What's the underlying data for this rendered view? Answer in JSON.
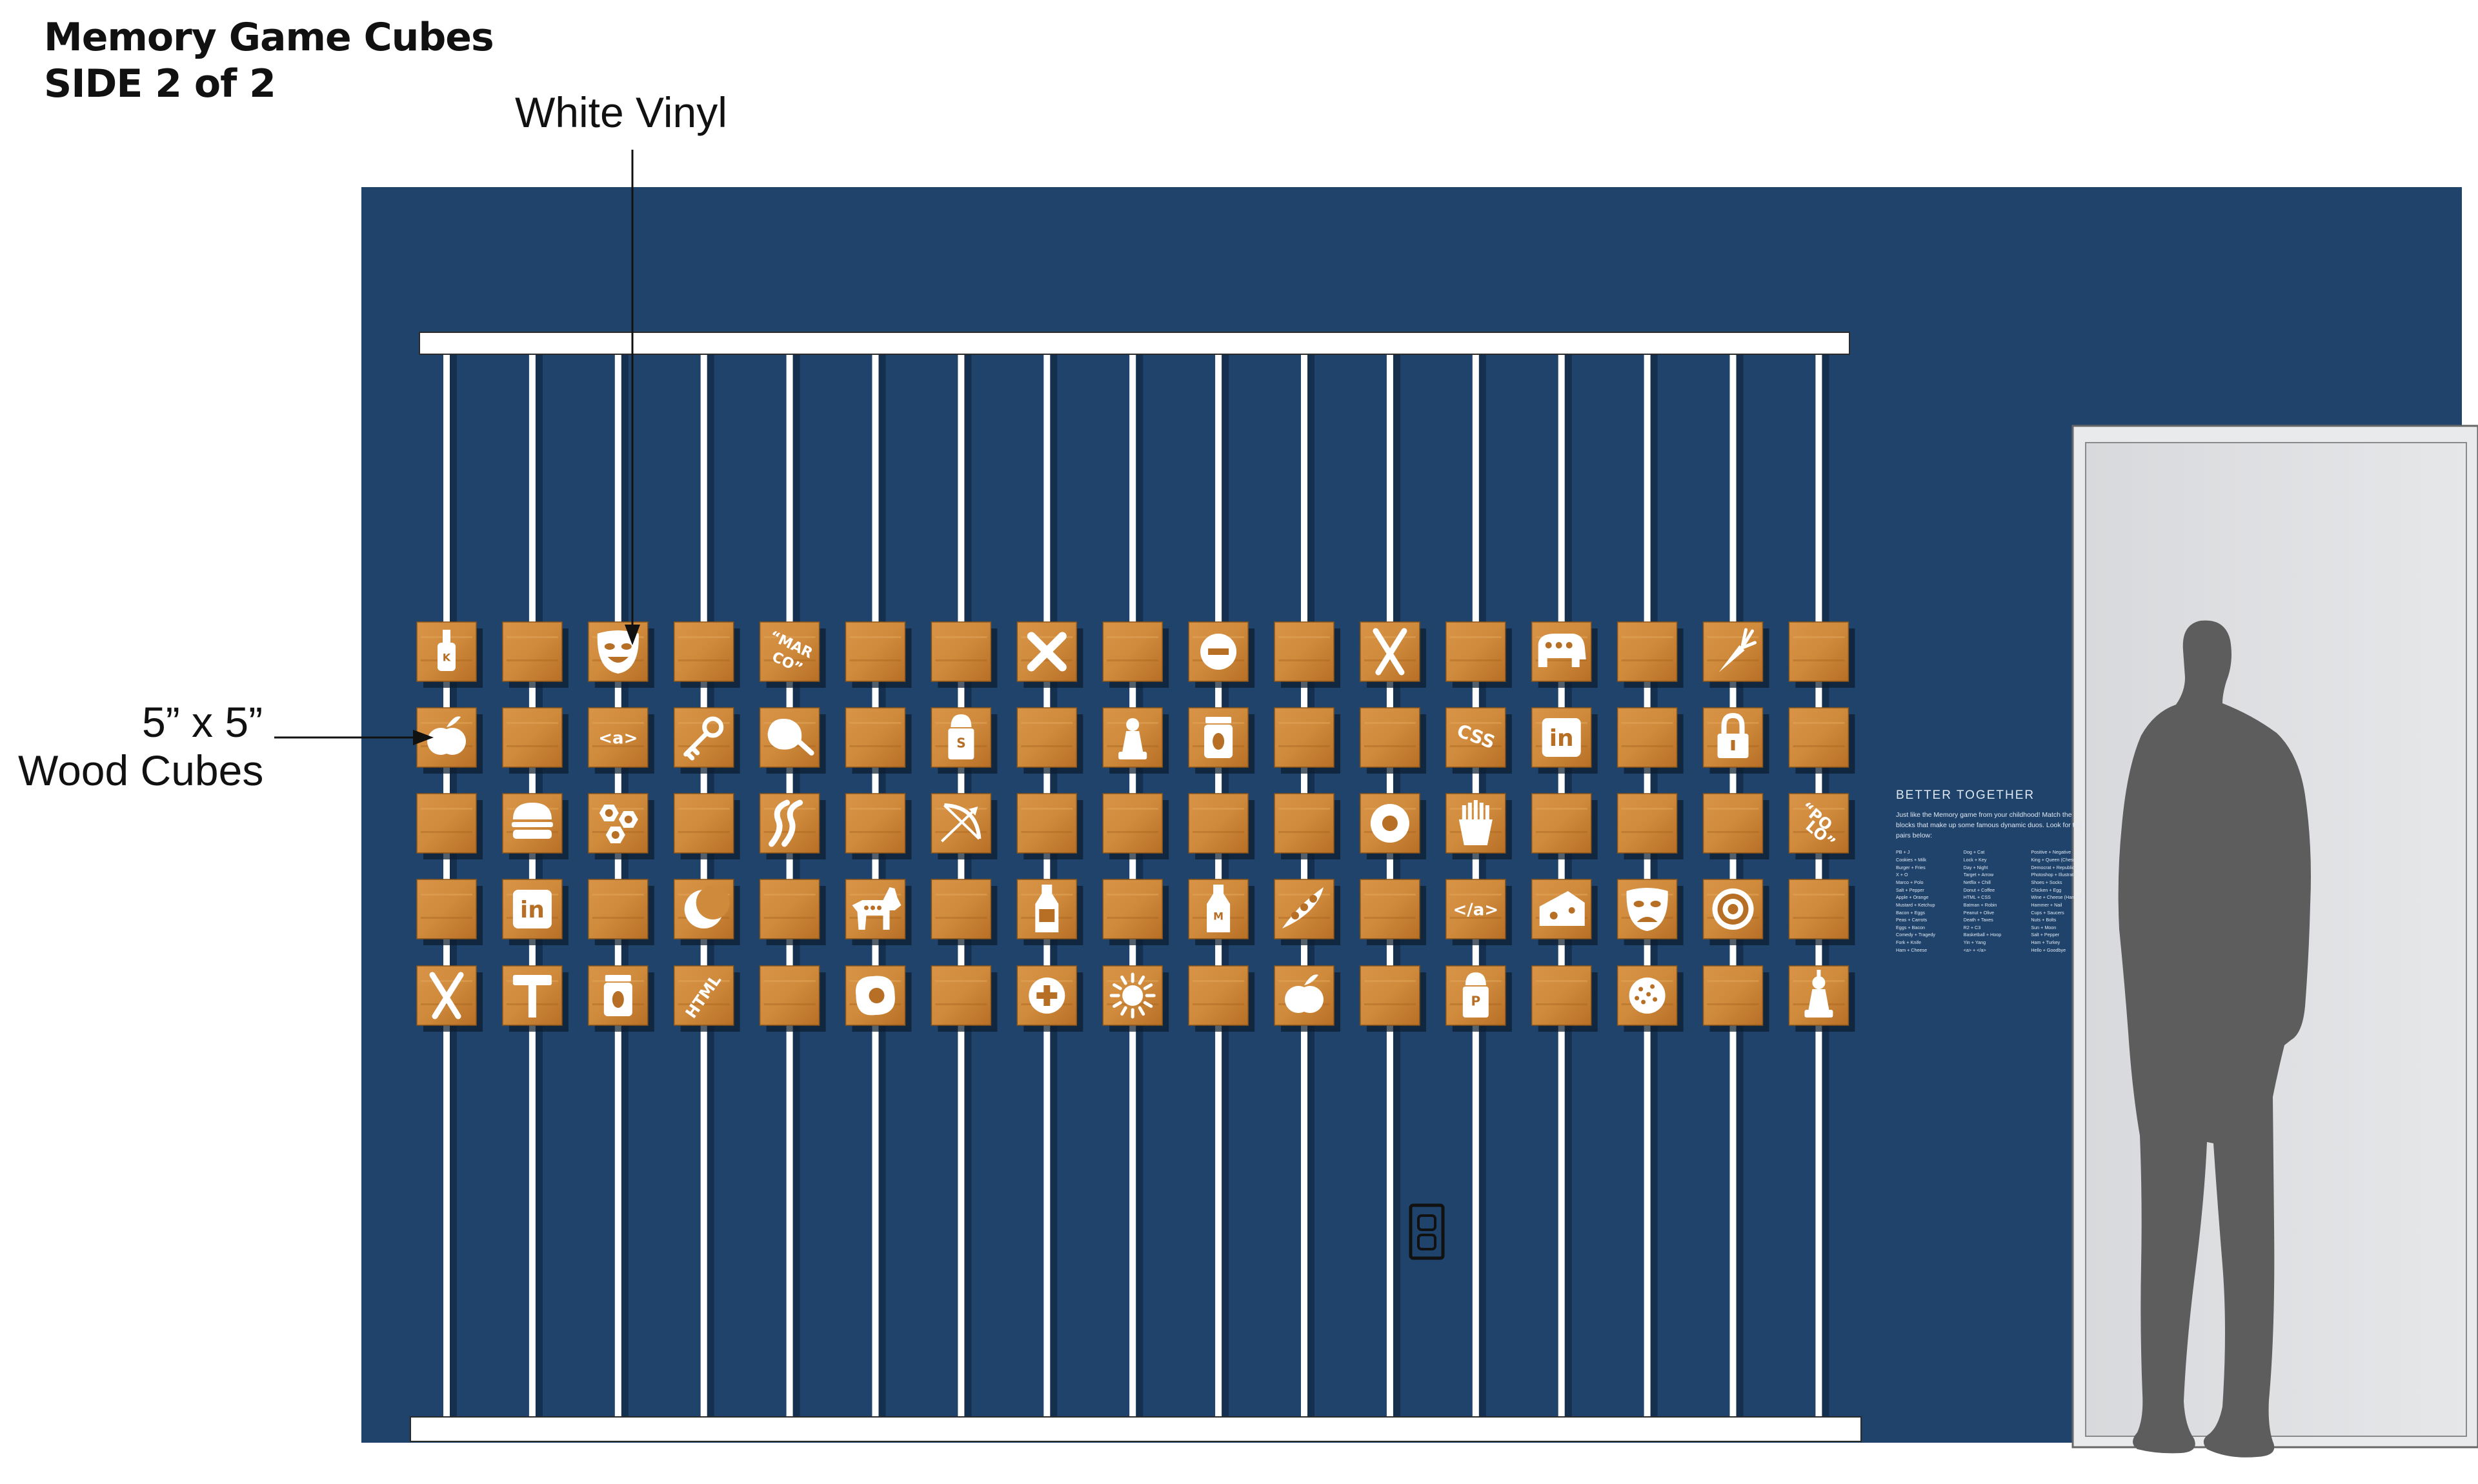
{
  "title": {
    "line1": "Memory Game Cubes",
    "line2": "SIDE 2 of 2"
  },
  "callouts": {
    "vinyl": "White Vinyl",
    "cube_line1": "5” x 5”",
    "cube_line2": "Wood Cubes"
  },
  "info_panel": {
    "heading": "BETTER TOGETHER",
    "intro": "Just like the Memory game from your childhood! Match the blocks that make up some famous dynamic duos. Look for the pairs below:",
    "pairs_col1": [
      "PB + J",
      "Cookies + Milk",
      "Burger + Fries",
      "X + O",
      "Marco + Polo",
      "Salt + Pepper",
      "Apple + Orange",
      "Mustard + Ketchup",
      "Bacon + Eggs",
      "Peas + Carrots",
      "Eggs + Bacon",
      "Comedy + Tragedy",
      "Fork + Knife",
      "Ham + Cheese"
    ],
    "pairs_col2": [
      "Dog + Cat",
      "Lock + Key",
      "Day + Night",
      "Target + Arrow",
      "Netflix + Chill",
      "Donut + Coffee",
      "HTML + CSS",
      "Batman + Robin",
      "Peanut + Olive",
      "Death + Taxes",
      "R2 + C3",
      "Basketball + Hoop",
      "Yin + Yang",
      "<a> + </a>"
    ],
    "pairs_col3": [
      "Positive + Negative",
      "King + Queen (Chess)",
      "Democrat + Republican",
      "Photoshop + Illustrator",
      "Shoes + Socks",
      "Chicken + Egg",
      "Wine + Cheese (Harry P)",
      "Hammer + Nail",
      "Cups + Saucers",
      "Nuts + Bolts",
      "Sun + Moon",
      "Salt + Pepper",
      "Ham + Turkey",
      "Hello + Goodbye"
    ]
  },
  "cube_icons": [
    [
      "ketchup-bottle-icon",
      "",
      "comedy-mask-icon",
      "",
      "marco-text-icon",
      "",
      "",
      "x-mark-icon",
      "",
      "minus-icon",
      "",
      "fork-knife-icon",
      "",
      "republican-elephant-icon",
      "",
      "carrot-icon",
      ""
    ],
    [
      "apple-icon",
      "",
      "anchor-tag-icon",
      "key-icon",
      "ham-icon",
      "",
      "salt-shaker-icon",
      "",
      "chess-pawn-icon",
      "jam-jar-icon",
      "",
      "",
      "css-text-icon",
      "linkedin-icon",
      "",
      "padlock-icon",
      ""
    ],
    [
      "",
      "burger-icon",
      "nuts-bolts-icon",
      "",
      "bacon-icon",
      "",
      "bow-arrow-icon",
      "",
      "",
      "",
      "",
      "donut-icon",
      "fries-icon",
      "",
      "",
      "",
      "polo-text-icon"
    ],
    [
      "",
      "linkedin-icon",
      "",
      "moon-icon",
      "",
      "democrat-donkey-icon",
      "",
      "milk-bottle-icon",
      "",
      "mustard-bottle-icon",
      "peas-pod-icon",
      "",
      "closing-anchor-tag-icon",
      "cheese-icon",
      "tragedy-mask-icon",
      "target-icon",
      ""
    ],
    [
      "scissors-icon",
      "hammer-icon",
      "coffee-cup-icon",
      "html-text-icon",
      "",
      "fried-egg-icon",
      "",
      "plus-icon",
      "sun-icon",
      "",
      "apple-icon",
      "",
      "pepper-shaker-icon",
      "",
      "cookie-icon",
      "",
      "chess-king-icon"
    ]
  ],
  "cube_text": {
    "ketchup_letter": "K",
    "anchor_tag": "<a>",
    "closing_tag": "</a>",
    "css": "CSS",
    "linkedin": "in",
    "salt_letter": "S",
    "pepper_letter": "P",
    "mustard_letter": "M",
    "html": "HTML",
    "marco": "“MAR CO”",
    "polo": "“PO LO”"
  },
  "colors": {
    "wall": "#1f436b",
    "wood": "#cf8a3c",
    "wood_dark": "#b76f26",
    "vinyl": "#ffffff",
    "silhouette": "#5d5d5d",
    "door": "#e6e7e9"
  }
}
